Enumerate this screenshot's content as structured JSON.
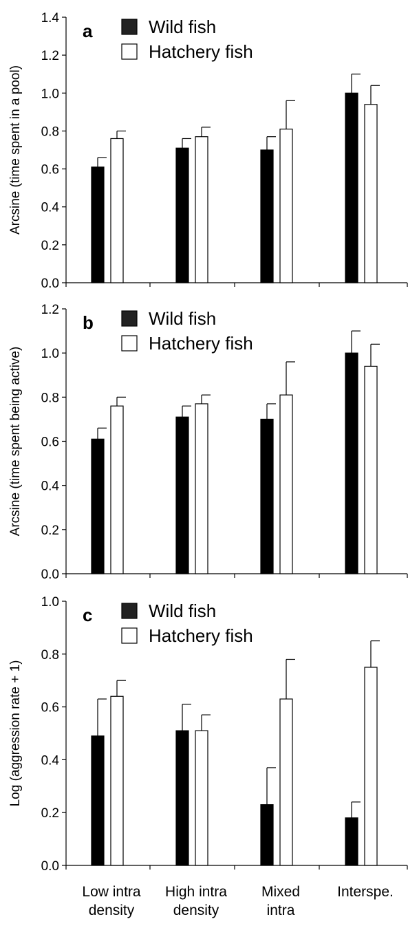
{
  "chart_data": [
    {
      "type": "bar",
      "panel_label": "a",
      "categories": [
        "Low intra density",
        "High intra density",
        "Mixed intra",
        "Interspe."
      ],
      "ylabel": "Arcsine (time spent in a pool)",
      "ylim": [
        0,
        1.4
      ],
      "yticks": [
        "0.0",
        "0.2",
        "0.4",
        "0.6",
        "0.8",
        "1.0",
        "1.2",
        "1.4"
      ],
      "legend_position": "top-left",
      "series": [
        {
          "name": "Wild fish",
          "color": "#000000",
          "values": [
            0.61,
            0.71,
            0.7,
            1.0
          ],
          "errors": [
            0.05,
            0.05,
            0.07,
            0.1
          ]
        },
        {
          "name": "Hatchery fish",
          "color": "#ffffff",
          "values": [
            0.76,
            0.77,
            0.81,
            0.94
          ],
          "errors": [
            0.04,
            0.05,
            0.15,
            0.1
          ]
        }
      ]
    },
    {
      "type": "bar",
      "panel_label": "b",
      "categories": [
        "Low intra density",
        "High intra density",
        "Mixed intra",
        "Interspe."
      ],
      "ylabel": "Arcsine (time spent being active)",
      "ylim": [
        0,
        1.2
      ],
      "yticks": [
        "0.0",
        "0.2",
        "0.4",
        "0.6",
        "0.8",
        "1.0",
        "1.2"
      ],
      "legend_position": "top-left",
      "series": [
        {
          "name": "Wild fish",
          "color": "#000000",
          "values": [
            0.61,
            0.71,
            0.7,
            1.0
          ],
          "errors": [
            0.05,
            0.05,
            0.07,
            0.1
          ]
        },
        {
          "name": "Hatchery fish",
          "color": "#ffffff",
          "values": [
            0.76,
            0.77,
            0.81,
            0.94
          ],
          "errors": [
            0.04,
            0.04,
            0.15,
            0.1
          ]
        }
      ]
    },
    {
      "type": "bar",
      "panel_label": "c",
      "categories": [
        "Low intra density",
        "High intra density",
        "Mixed intra",
        "Interspe."
      ],
      "ylabel": "Log (aggression rate + 1)",
      "ylim": [
        0,
        1.0
      ],
      "yticks": [
        "0.0",
        "0.2",
        "0.4",
        "0.6",
        "0.8",
        "1.0"
      ],
      "legend_position": "top-left",
      "series": [
        {
          "name": "Wild fish",
          "color": "#000000",
          "values": [
            0.49,
            0.51,
            0.23,
            0.18
          ],
          "errors": [
            0.14,
            0.1,
            0.14,
            0.06
          ]
        },
        {
          "name": "Hatchery fish",
          "color": "#ffffff",
          "values": [
            0.64,
            0.51,
            0.63,
            0.75
          ],
          "errors": [
            0.06,
            0.06,
            0.15,
            0.1
          ]
        }
      ]
    }
  ],
  "x_category_labels": [
    [
      "Low intra",
      "density"
    ],
    [
      "High intra",
      "density"
    ],
    [
      "Mixed",
      "intra"
    ],
    [
      "Interspe."
    ]
  ]
}
